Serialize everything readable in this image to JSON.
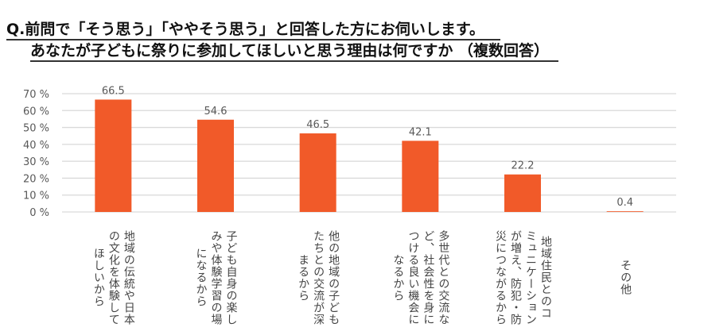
{
  "title": {
    "line1": "Q.前問で「そう思う」「ややそう思う」と回答した方にお伺いします。",
    "line2": "あなたが子どもに祭りに参加してほしいと思う理由は何ですか （複数回答）"
  },
  "chart_data": {
    "type": "bar",
    "title": "Q.前問で「そう思う」「ややそう思う」と回答した方にお伺いします。あなたが子どもに祭りに参加してほしいと思う理由は何ですか （複数回答）",
    "categories": [
      "地域の伝統や日本\nの文化を体験して\nほしいから",
      "子ども自身の楽し\nみや体験学習の場\nになるから",
      "他の地域の子ども\nたちとの交流が深\nまるから",
      "多世代との交流な\nど、社会性を身に\nつける良い機会に\nなるから",
      "地域住民とのコ\nミュニケーション\nが増え、防犯・防\n災につながるから",
      "その他"
    ],
    "values": [
      66.5,
      54.6,
      46.5,
      42.1,
      22.2,
      0.4
    ],
    "value_labels": [
      "66.5",
      "54.6",
      "46.5",
      "42.1",
      "22.2",
      "0.4"
    ],
    "yticks": [
      "0 %",
      "10 %",
      "20 %",
      "30 %",
      "40 %",
      "50 %",
      "60 %",
      "70 %"
    ],
    "ylim": [
      0,
      70
    ],
    "xlabel": "",
    "ylabel": "",
    "grid": true,
    "bar_color": "#F15A29"
  }
}
